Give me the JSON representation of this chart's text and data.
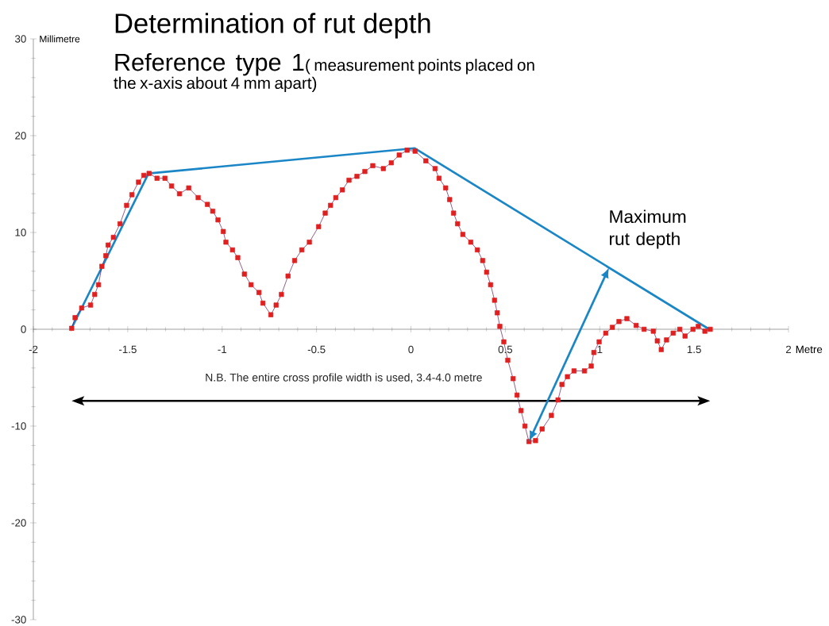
{
  "chart_data": {
    "type": "line",
    "title": "Determination of rut depth",
    "subtitle": "Reference type 1",
    "xlabel": "Metre",
    "ylabel": "Millimetre",
    "xlim": [
      -2,
      2
    ],
    "ylim": [
      -30,
      30
    ],
    "xticks": [
      -2,
      -1.5,
      -1,
      -0.5,
      0,
      0.5,
      1,
      1.5,
      2
    ],
    "yticks": [
      -30,
      -20,
      -10,
      0,
      10,
      20,
      30
    ],
    "grid": false,
    "annotations": [
      "( measurement points placed on the x-axis about 4 mm apart)",
      "N.B. The entire cross profile width is used, 3.4-4.0  metre",
      {
        "text": "Maximum rut depth",
        "x": 1.05,
        "y": 6.4
      }
    ],
    "series": [
      {
        "color": "#e02020",
        "marker": "square",
        "x": [
          -1.797,
          -1.779,
          -1.744,
          -1.697,
          -1.675,
          -1.655,
          -1.637,
          -1.616,
          -1.604,
          -1.576,
          -1.541,
          -1.506,
          -1.478,
          -1.443,
          -1.415,
          -1.387,
          -1.345,
          -1.303,
          -1.268,
          -1.226,
          -1.177,
          -1.127,
          -1.078,
          -1.05,
          -1.022,
          -0.994,
          -0.98,
          -0.945,
          -0.917,
          -0.882,
          -0.847,
          -0.805,
          -0.784,
          -0.742,
          -0.714,
          -0.686,
          -0.651,
          -0.616,
          -0.578,
          -0.538,
          -0.489,
          -0.454,
          -0.426,
          -0.398,
          -0.363,
          -0.328,
          -0.286,
          -0.244,
          -0.202,
          -0.146,
          -0.104,
          -0.062,
          -0.02,
          0.022,
          0.079,
          0.128,
          0.149,
          0.184,
          0.205,
          0.226,
          0.247,
          0.275,
          0.317,
          0.352,
          0.38,
          0.401,
          0.422,
          0.443,
          0.457,
          0.471,
          0.492,
          0.513,
          0.541,
          0.562,
          0.583,
          0.604,
          0.625,
          0.66,
          0.695,
          0.744,
          0.779,
          0.8,
          0.829,
          0.864,
          0.919,
          0.955,
          0.969,
          0.997,
          1.032,
          1.067,
          1.102,
          1.144,
          1.193,
          1.235,
          1.284,
          1.305,
          1.326,
          1.354,
          1.389,
          1.424,
          1.452,
          1.494,
          1.522,
          1.557,
          1.585
        ],
        "values": [
          0.1,
          1.2,
          2.2,
          2.5,
          3.6,
          4.6,
          6.5,
          7.6,
          8.7,
          9.5,
          10.9,
          12.8,
          13.9,
          15.2,
          15.9,
          16.1,
          15.6,
          15.6,
          14.8,
          14.0,
          14.6,
          13.6,
          12.9,
          12.2,
          11.3,
          10.1,
          9.0,
          8.2,
          7.4,
          5.7,
          4.6,
          3.8,
          2.7,
          1.5,
          2.5,
          3.6,
          5.5,
          7.1,
          8.2,
          9.0,
          10.6,
          12.0,
          12.8,
          13.6,
          14.4,
          15.4,
          15.8,
          16.3,
          16.9,
          16.6,
          17.2,
          18.0,
          18.5,
          18.4,
          17.4,
          16.6,
          15.6,
          14.6,
          13.4,
          12.0,
          10.9,
          9.8,
          9.0,
          8.2,
          7.1,
          5.9,
          4.6,
          3.0,
          1.7,
          0.3,
          -1.3,
          -3.2,
          -5.1,
          -6.8,
          -8.4,
          -10.0,
          -11.6,
          -11.5,
          -10.3,
          -8.9,
          -7.3,
          -5.7,
          -4.9,
          -4.3,
          -4.3,
          -3.8,
          -2.4,
          -1.3,
          -0.4,
          0.2,
          0.8,
          1.1,
          0.4,
          0.0,
          -0.2,
          -1.2,
          -2.1,
          -1.1,
          -0.4,
          0.0,
          -0.7,
          0.0,
          0.3,
          -0.2,
          0.0
        ]
      },
      {
        "color": "#1a86c6",
        "marker": "none",
        "x": [
          -1.8,
          -1.39,
          0.02,
          1.58
        ],
        "values": [
          0,
          16.1,
          18.7,
          0
        ]
      }
    ]
  }
}
